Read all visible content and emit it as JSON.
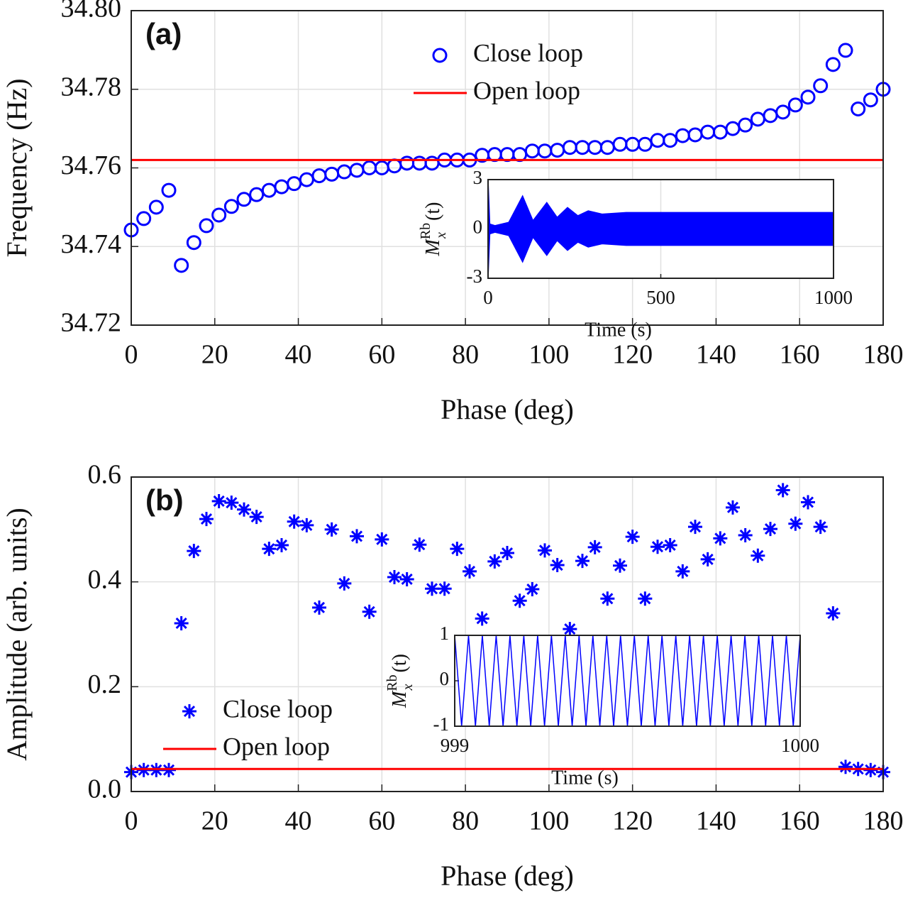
{
  "chart_data": [
    {
      "type": "scatter",
      "panel_label": "(a)",
      "xlabel": "Phase (deg)",
      "ylabel": "Frequency (Hz)",
      "x": [
        0,
        3,
        6,
        9,
        12,
        15,
        18,
        21,
        24,
        27,
        30,
        33,
        36,
        39,
        42,
        45,
        48,
        51,
        54,
        57,
        60,
        63,
        66,
        69,
        72,
        75,
        78,
        81,
        84,
        87,
        90,
        93,
        96,
        99,
        102,
        105,
        108,
        111,
        114,
        117,
        120,
        123,
        126,
        129,
        132,
        135,
        138,
        141,
        144,
        147,
        150,
        153,
        156,
        159,
        162,
        165,
        168,
        171,
        174,
        177,
        180
      ],
      "series": [
        {
          "name": "Close loop",
          "color": "#0000ff",
          "marker": "circle",
          "values": [
            34.7442,
            34.7471,
            34.75,
            34.7543,
            34.7352,
            34.741,
            34.7453,
            34.748,
            34.7502,
            34.752,
            34.7532,
            34.7543,
            34.7552,
            34.756,
            34.757,
            34.758,
            34.7584,
            34.759,
            34.7594,
            34.76,
            34.76,
            34.7605,
            34.7612,
            34.7612,
            34.7612,
            34.762,
            34.762,
            34.762,
            34.7632,
            34.7634,
            34.7634,
            34.7634,
            34.7643,
            34.7643,
            34.7645,
            34.7652,
            34.7652,
            34.7652,
            34.7652,
            34.766,
            34.766,
            34.766,
            34.767,
            34.767,
            34.7682,
            34.7684,
            34.7691,
            34.7691,
            34.77,
            34.7709,
            34.7724,
            34.7733,
            34.7742,
            34.776,
            34.778,
            34.7809,
            34.7863,
            34.7899,
            34.775,
            34.7773,
            34.78
          ]
        },
        {
          "name": "Open loop",
          "color": "#ff0000",
          "marker": "hline",
          "value": 34.762
        }
      ],
      "legend": "upper center",
      "xlim": [
        0,
        180
      ],
      "xticks": [
        0,
        20,
        40,
        60,
        80,
        100,
        120,
        140,
        160,
        180
      ],
      "ylim": [
        34.72,
        34.8
      ],
      "yticks": [
        34.72,
        34.74,
        34.76,
        34.78,
        {
          "value": 34.8,
          "label": "34.80"
        }
      ],
      "grid": true,
      "inset": {
        "type": "line",
        "band_fill": true,
        "ylabel": "M",
        "ylabel_sup": "Rb",
        "ylabel_sub": "x",
        "ylabel_suffix": "(t)",
        "xlabel": "Time (s)",
        "x": [
          0,
          5,
          20,
          60,
          100,
          130,
          170,
          200,
          230,
          260,
          290,
          330,
          400,
          1000
        ],
        "series": [
          {
            "color": "#0000ff",
            "values": [
              3,
              0.3,
              0.2,
              0.4,
              2,
              0.5,
              1.6,
              0.7,
              1.3,
              0.8,
              1.1,
              0.9,
              1,
              1
            ]
          },
          {
            "color": "#0000ff",
            "values": [
              -3,
              -0.3,
              -0.2,
              -0.4,
              -2,
              -0.5,
              -1.6,
              -0.7,
              -1.3,
              -0.8,
              -1.1,
              -0.9,
              -1,
              -1
            ]
          }
        ],
        "xlim": [
          0,
          1000
        ],
        "xticks": [
          0,
          500,
          1000
        ],
        "ylim": [
          -3,
          3
        ],
        "yticks": [
          -3,
          0,
          3
        ],
        "grid": true
      }
    },
    {
      "type": "scatter",
      "panel_label": "(b)",
      "xlabel": "Phase (deg)",
      "ylabel": "Amplitude (arb. units)",
      "x": [
        0,
        3,
        6,
        9,
        12,
        15,
        18,
        21,
        24,
        27,
        30,
        33,
        36,
        39,
        42,
        45,
        48,
        51,
        54,
        57,
        60,
        63,
        66,
        69,
        72,
        75,
        78,
        81,
        84,
        87,
        90,
        93,
        96,
        99,
        102,
        105,
        108,
        111,
        114,
        117,
        120,
        123,
        126,
        129,
        132,
        135,
        138,
        141,
        144,
        147,
        150,
        153,
        156,
        159,
        162,
        165,
        168,
        171,
        174,
        177,
        180
      ],
      "series": [
        {
          "name": "Close loop",
          "color": "#0000ff",
          "marker": "star",
          "values": [
            0.037,
            0.041,
            0.041,
            0.041,
            0.321,
            0.459,
            0.52,
            0.554,
            0.551,
            0.538,
            0.524,
            0.463,
            0.47,
            0.515,
            0.508,
            0.351,
            0.5,
            0.397,
            0.487,
            0.343,
            0.481,
            0.409,
            0.405,
            0.471,
            0.387,
            0.387,
            0.463,
            0.42,
            0.33,
            0.439,
            0.455,
            0.364,
            0.386,
            0.46,
            0.432,
            0.31,
            0.44,
            0.466,
            0.368,
            0.431,
            0.486,
            0.368,
            0.467,
            0.47,
            0.42,
            0.505,
            0.443,
            0.483,
            0.542,
            0.489,
            0.45,
            0.501,
            0.575,
            0.511,
            0.552,
            0.505,
            0.34,
            0.047,
            0.043,
            0.041,
            0.037
          ]
        },
        {
          "name": "Open loop",
          "color": "#ff0000",
          "marker": "hline",
          "value": 0.043
        }
      ],
      "legend": "lower left",
      "xlim": [
        0,
        180
      ],
      "xticks": [
        0,
        20,
        40,
        60,
        80,
        100,
        120,
        140,
        160,
        180
      ],
      "ylim": [
        0,
        0.6
      ],
      "yticks": [
        {
          "value": 0,
          "label": "0.0"
        },
        0.2,
        0.4,
        0.6
      ],
      "grid": true,
      "inset": {
        "type": "line",
        "band_fill": false,
        "ylabel": "M",
        "ylabel_sup": "Rb",
        "ylabel_sub": "x",
        "ylabel_suffix": "(t)",
        "xlabel": "Time (s)",
        "x": [
          999,
          999.02,
          999.04,
          999.06,
          999.08,
          999.1,
          999.12,
          999.14,
          999.16,
          999.18,
          999.2,
          999.22,
          999.24,
          999.26,
          999.28,
          999.3,
          999.32,
          999.34,
          999.36,
          999.38,
          999.4,
          999.42,
          999.44,
          999.46,
          999.48,
          999.5,
          999.52,
          999.54,
          999.56,
          999.58,
          999.6,
          999.62,
          999.64,
          999.66,
          999.68,
          999.7,
          999.72,
          999.74,
          999.76,
          999.78,
          999.8,
          999.82,
          999.84,
          999.86,
          999.88,
          999.9,
          999.92,
          999.94,
          999.96,
          999.98,
          1000
        ],
        "series": [
          {
            "color": "#0000ff",
            "values": [
              1,
              -1,
              1,
              -1,
              1,
              -1,
              1,
              -1,
              1,
              -1,
              1,
              -1,
              1,
              -1,
              1,
              -1,
              1,
              -1,
              1,
              -1,
              1,
              -1,
              1,
              -1,
              1,
              -1,
              1,
              -1,
              1,
              -1,
              1,
              -1,
              1,
              -1,
              1,
              -1,
              1,
              -1,
              1,
              -1,
              1,
              -1,
              1,
              -1,
              1,
              -1,
              1,
              -1,
              1,
              -1,
              1
            ]
          }
        ],
        "xlim": [
          999,
          1000
        ],
        "xticks": [
          999,
          1000
        ],
        "ylim": [
          -1,
          1
        ],
        "yticks": [
          -1,
          0,
          1
        ],
        "grid": false
      }
    }
  ]
}
